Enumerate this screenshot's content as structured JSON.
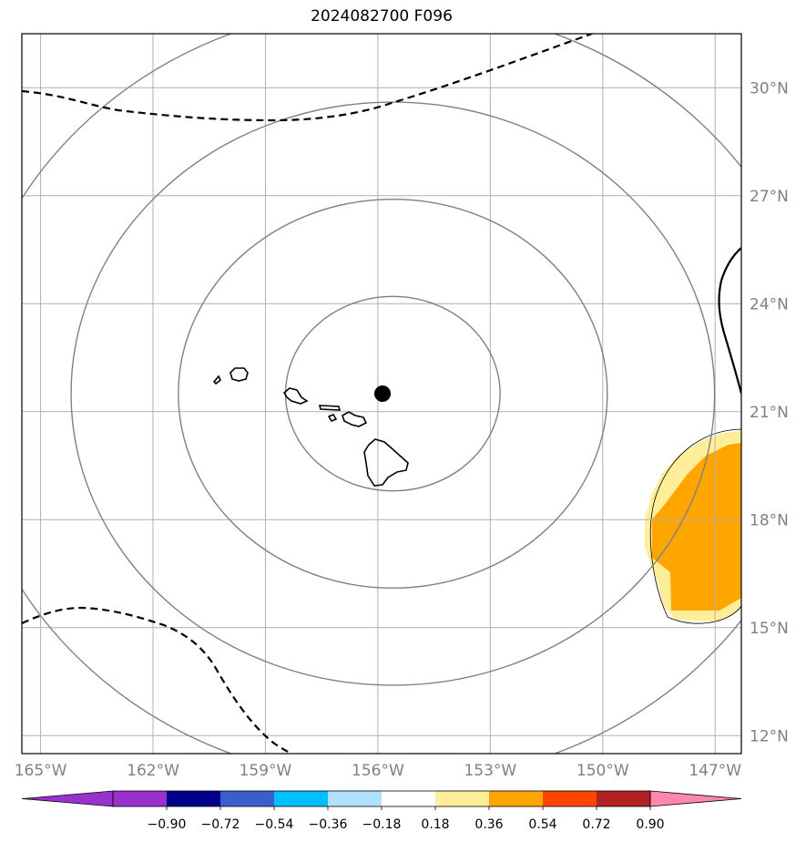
{
  "title": "2024082700 F096",
  "map": {
    "lon_range": [
      -165.5,
      -146.3
    ],
    "lat_range": [
      11.5,
      31.5
    ],
    "lon_ticks": [
      {
        "value": -165,
        "label": "165°W"
      },
      {
        "value": -162,
        "label": "162°W"
      },
      {
        "value": -159,
        "label": "159°W"
      },
      {
        "value": -156,
        "label": "156°W"
      },
      {
        "value": -153,
        "label": "153°W"
      },
      {
        "value": -150,
        "label": "150°W"
      },
      {
        "value": -147,
        "label": "147°W"
      }
    ],
    "lat_ticks": [
      {
        "value": 12,
        "label": "12°N"
      },
      {
        "value": 15,
        "label": "15°N"
      },
      {
        "value": 18,
        "label": "18°N"
      },
      {
        "value": 21,
        "label": "21°N"
      },
      {
        "value": 24,
        "label": "24°N"
      },
      {
        "value": 27,
        "label": "27°N"
      },
      {
        "value": 30,
        "label": "30°N"
      }
    ],
    "center_marker": {
      "lon": -155.6,
      "lat": 21.5
    },
    "range_rings_deg": [
      2.7,
      5.4,
      8.1,
      10.8
    ],
    "colors": {
      "grid": "#b0b0b0",
      "rings": "#808080",
      "coast": "#000000",
      "marker": "#000000",
      "anomaly_light": "#ffee99",
      "anomaly_mid": "#ffa500"
    }
  },
  "colorbar": {
    "ticks": [
      "−0.90",
      "−0.72",
      "−0.54",
      "−0.36",
      "−0.18",
      "0.18",
      "0.36",
      "0.54",
      "0.72",
      "0.90"
    ],
    "colors": [
      "#9932cc",
      "#9932cc",
      "#00008b",
      "#3a5fcd",
      "#00bfff",
      "#b0e2ff",
      "#ffffff",
      "#ffee99",
      "#ffa500",
      "#ff4500",
      "#b22222",
      "#ff88aa"
    ]
  }
}
